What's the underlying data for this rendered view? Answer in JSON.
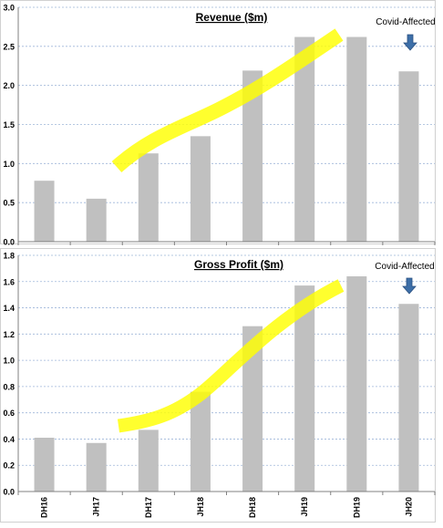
{
  "chart_data": [
    {
      "type": "bar",
      "title": "Revenue ($m)",
      "categories": [
        "DH16",
        "JH17",
        "DH17",
        "JH18",
        "DH18",
        "JH19",
        "DH19",
        "JH20"
      ],
      "values": [
        0.78,
        0.55,
        1.13,
        1.35,
        2.19,
        2.62,
        2.62,
        2.18
      ],
      "ylim": [
        0,
        3.0
      ],
      "yticks": [
        "0.0",
        "0.5",
        "1.0",
        "1.5",
        "2.0",
        "2.5",
        "3.0"
      ],
      "grid": true,
      "annotation": "Covid-Affected",
      "bar_color": "#c0c0c0",
      "highlight_color": "#ffff00",
      "arrow_color": "#3d6fa8"
    },
    {
      "type": "bar",
      "title": "Gross Profit ($m)",
      "categories": [
        "DH16",
        "JH17",
        "DH17",
        "JH18",
        "DH18",
        "JH19",
        "DH19",
        "JH20"
      ],
      "values": [
        0.41,
        0.37,
        0.47,
        0.76,
        1.26,
        1.57,
        1.64,
        1.43
      ],
      "ylim": [
        0,
        1.8
      ],
      "yticks": [
        "0.0",
        "0.2",
        "0.4",
        "0.6",
        "0.8",
        "1.0",
        "1.2",
        "1.4",
        "1.6",
        "1.8"
      ],
      "grid": true,
      "annotation": "Covid-Affected",
      "bar_color": "#c0c0c0",
      "highlight_color": "#ffff00",
      "arrow_color": "#3d6fa8"
    }
  ]
}
